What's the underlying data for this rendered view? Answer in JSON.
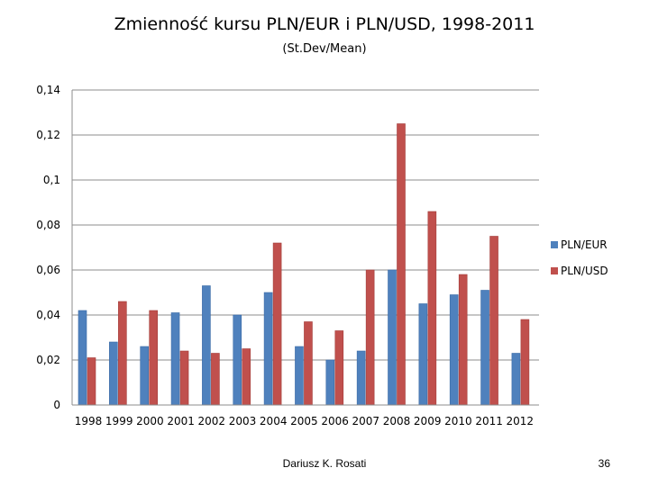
{
  "title": "Zmienność kursu PLN/EUR i PLN/USD, 1998-2011",
  "subtitle": "(St.Dev/Mean)",
  "footer": {
    "author": "Dariusz K. Rosati",
    "page": "36"
  },
  "colors": {
    "eur": "#4f81bd",
    "usd": "#c0504d",
    "grid": "#8c8c8c"
  },
  "legend": [
    {
      "name": "PLN/EUR",
      "color": "#4f81bd"
    },
    {
      "name": "PLN/USD",
      "color": "#c0504d"
    }
  ],
  "chart_data": {
    "type": "bar",
    "title": "Zmienność kursu PLN/EUR i PLN/USD, 1998-2011",
    "subtitle": "(St.Dev/Mean)",
    "categories": [
      "1998",
      "1999",
      "2000",
      "2001",
      "2002",
      "2003",
      "2004",
      "2005",
      "2006",
      "2007",
      "2008",
      "2009",
      "2010",
      "2011",
      "2012"
    ],
    "series": [
      {
        "name": "PLN/EUR",
        "values": [
          0.042,
          0.028,
          0.026,
          0.041,
          0.053,
          0.04,
          0.05,
          0.026,
          0.02,
          0.024,
          0.06,
          0.045,
          0.049,
          0.051,
          0.023
        ]
      },
      {
        "name": "PLN/USD",
        "values": [
          0.021,
          0.046,
          0.042,
          0.024,
          0.023,
          0.025,
          0.072,
          0.037,
          0.033,
          0.06,
          0.125,
          0.086,
          0.058,
          0.075,
          0.038
        ]
      }
    ],
    "ylim": [
      0,
      0.14
    ],
    "yticks": [
      "0",
      "0,02",
      "0,04",
      "0,06",
      "0,08",
      "0,1",
      "0,12",
      "0,14"
    ],
    "ytick_values": [
      0,
      0.02,
      0.04,
      0.06,
      0.08,
      0.1,
      0.12,
      0.14
    ],
    "grid": true,
    "legend_position": "right"
  }
}
